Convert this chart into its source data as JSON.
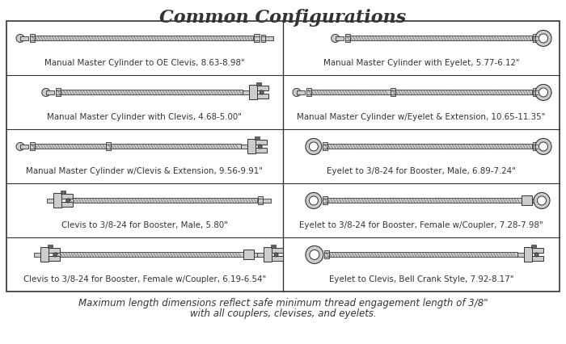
{
  "title": "Common Configurations",
  "title_fontsize": 16,
  "background_color": "#ffffff",
  "line_color": "#333333",
  "fill_light": "#cccccc",
  "fill_dark": "#666666",
  "fill_mid": "#aaaaaa",
  "fill_white": "#ffffff",
  "configs": [
    {
      "row": 0,
      "col": 0,
      "label": "Manual Master Cylinder to OE Clevis, 8.63-8.98\"",
      "type": "mmc_oe_clevis"
    },
    {
      "row": 0,
      "col": 1,
      "label": "Manual Master Cylinder with Eyelet, 5.77-6.12\"",
      "type": "mmc_eyelet"
    },
    {
      "row": 1,
      "col": 0,
      "label": "Manual Master Cylinder with Clevis, 4.68-5.00\"",
      "type": "mmc_clevis"
    },
    {
      "row": 1,
      "col": 1,
      "label": "Manual Master Cylinder w/Eyelet & Extension, 10.65-11.35\"",
      "type": "mmc_eyelet_ext"
    },
    {
      "row": 2,
      "col": 0,
      "label": "Manual Master Cylinder w/Clevis & Extension, 9.56-9.91\"",
      "type": "mmc_clevis_ext"
    },
    {
      "row": 2,
      "col": 1,
      "label": "Eyelet to 3/8-24 for Booster, Male, 6.89-7.24\"",
      "type": "eyelet_booster_male"
    },
    {
      "row": 3,
      "col": 0,
      "label": "Clevis to 3/8-24 for Booster, Male, 5.80\"",
      "type": "clevis_booster_male"
    },
    {
      "row": 3,
      "col": 1,
      "label": "Eyelet to 3/8-24 for Booster, Female w/Coupler, 7.28-7.98\"",
      "type": "eyelet_booster_female"
    },
    {
      "row": 4,
      "col": 0,
      "label": "Clevis to 3/8-24 for Booster, Female w/Coupler, 6.19-6.54\"",
      "type": "clevis_booster_female"
    },
    {
      "row": 4,
      "col": 1,
      "label": "Eyelet to Clevis, Bell Crank Style, 7.92-8.17\"",
      "type": "eyelet_clevis_bell"
    }
  ],
  "footnote_line1": "Maximum length dimensions reflect safe minimum thread engagement length of 3/8\"",
  "footnote_line2": "with all couplers, clevises, and eyelets.",
  "footnote_fontsize": 8.5
}
